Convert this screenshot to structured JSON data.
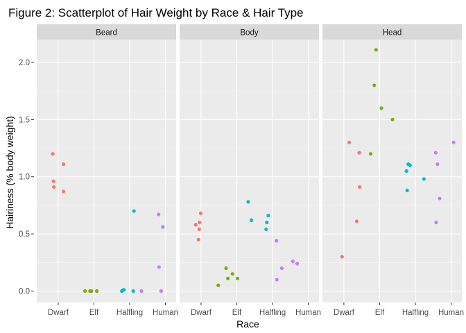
{
  "chart_data": {
    "type": "scatter",
    "title": "Figure 2: Scatterplot of Hair Weight by Race & Hair Type",
    "xlabel": "Race",
    "ylabel": "Hairiness (% body weight)",
    "facets": [
      "Beard",
      "Body",
      "Head"
    ],
    "categories": [
      "Dwarf",
      "Elf",
      "Halfling",
      "Human"
    ],
    "ylim": [
      -0.1,
      2.2
    ],
    "yticks": [
      0.0,
      0.5,
      1.0,
      1.5,
      2.0
    ],
    "ytick_labels": [
      "0.0",
      "0.5",
      "1.0",
      "1.5",
      "2.0"
    ],
    "grid": true,
    "legend": "none",
    "colors": {
      "Dwarf": "#f8766d",
      "Elf": "#7cae00",
      "Halfling": "#00bfc4",
      "Human": "#c77cff"
    },
    "panel_background": "#ebebeb",
    "strip_background": "#d9d9d9",
    "points": [
      {
        "facet": "Beard",
        "race": "Dwarf",
        "x": 0.85,
        "y": 1.2
      },
      {
        "facet": "Beard",
        "race": "Dwarf",
        "x": 0.87,
        "y": 0.96
      },
      {
        "facet": "Beard",
        "race": "Dwarf",
        "x": 0.88,
        "y": 0.91
      },
      {
        "facet": "Beard",
        "race": "Dwarf",
        "x": 1.15,
        "y": 1.11
      },
      {
        "facet": "Beard",
        "race": "Dwarf",
        "x": 1.15,
        "y": 0.87
      },
      {
        "facet": "Beard",
        "race": "Elf",
        "x": 1.75,
        "y": 0.0
      },
      {
        "facet": "Beard",
        "race": "Elf",
        "x": 1.89,
        "y": 0.0
      },
      {
        "facet": "Beard",
        "race": "Elf",
        "x": 1.91,
        "y": 0.0
      },
      {
        "facet": "Beard",
        "race": "Elf",
        "x": 1.93,
        "y": 0.0
      },
      {
        "facet": "Beard",
        "race": "Elf",
        "x": 2.08,
        "y": 0.0
      },
      {
        "facet": "Beard",
        "race": "Halfling",
        "x": 2.78,
        "y": 0.0
      },
      {
        "facet": "Beard",
        "race": "Halfling",
        "x": 2.82,
        "y": 0.01
      },
      {
        "facet": "Beard",
        "race": "Halfling",
        "x": 2.84,
        "y": 0.01
      },
      {
        "facet": "Beard",
        "race": "Halfling",
        "x": 3.1,
        "y": 0.0
      },
      {
        "facet": "Beard",
        "race": "Halfling",
        "x": 3.12,
        "y": 0.7
      },
      {
        "facet": "Beard",
        "race": "Human",
        "x": 3.33,
        "y": 0.0
      },
      {
        "facet": "Beard",
        "race": "Human",
        "x": 3.81,
        "y": 0.67
      },
      {
        "facet": "Beard",
        "race": "Human",
        "x": 3.82,
        "y": 0.21
      },
      {
        "facet": "Beard",
        "race": "Human",
        "x": 3.88,
        "y": 0.0
      },
      {
        "facet": "Beard",
        "race": "Human",
        "x": 3.93,
        "y": 0.56
      },
      {
        "facet": "Body",
        "race": "Dwarf",
        "x": 0.85,
        "y": 0.58
      },
      {
        "facet": "Body",
        "race": "Dwarf",
        "x": 0.93,
        "y": 0.45
      },
      {
        "facet": "Body",
        "race": "Dwarf",
        "x": 0.95,
        "y": 0.54
      },
      {
        "facet": "Body",
        "race": "Dwarf",
        "x": 0.96,
        "y": 0.6
      },
      {
        "facet": "Body",
        "race": "Dwarf",
        "x": 0.99,
        "y": 0.68
      },
      {
        "facet": "Body",
        "race": "Elf",
        "x": 1.48,
        "y": 0.05
      },
      {
        "facet": "Body",
        "race": "Elf",
        "x": 1.7,
        "y": 0.2
      },
      {
        "facet": "Body",
        "race": "Elf",
        "x": 1.75,
        "y": 0.11
      },
      {
        "facet": "Body",
        "race": "Elf",
        "x": 1.88,
        "y": 0.15
      },
      {
        "facet": "Body",
        "race": "Elf",
        "x": 2.02,
        "y": 0.11
      },
      {
        "facet": "Body",
        "race": "Halfling",
        "x": 2.32,
        "y": 0.78
      },
      {
        "facet": "Body",
        "race": "Halfling",
        "x": 2.41,
        "y": 0.62
      },
      {
        "facet": "Body",
        "race": "Halfling",
        "x": 2.82,
        "y": 0.54
      },
      {
        "facet": "Body",
        "race": "Halfling",
        "x": 2.84,
        "y": 0.6
      },
      {
        "facet": "Body",
        "race": "Halfling",
        "x": 2.88,
        "y": 0.66
      },
      {
        "facet": "Body",
        "race": "Human",
        "x": 3.11,
        "y": 0.44
      },
      {
        "facet": "Body",
        "race": "Human",
        "x": 3.12,
        "y": 0.1
      },
      {
        "facet": "Body",
        "race": "Human",
        "x": 3.26,
        "y": 0.2
      },
      {
        "facet": "Body",
        "race": "Human",
        "x": 3.57,
        "y": 0.26
      },
      {
        "facet": "Body",
        "race": "Human",
        "x": 3.69,
        "y": 0.24
      },
      {
        "facet": "Head",
        "race": "Dwarf",
        "x": 0.95,
        "y": 0.3
      },
      {
        "facet": "Head",
        "race": "Dwarf",
        "x": 1.15,
        "y": 1.3
      },
      {
        "facet": "Head",
        "race": "Dwarf",
        "x": 1.36,
        "y": 0.61
      },
      {
        "facet": "Head",
        "race": "Dwarf",
        "x": 1.43,
        "y": 1.21
      },
      {
        "facet": "Head",
        "race": "Dwarf",
        "x": 1.44,
        "y": 0.91
      },
      {
        "facet": "Head",
        "race": "Elf",
        "x": 1.75,
        "y": 1.2
      },
      {
        "facet": "Head",
        "race": "Elf",
        "x": 1.85,
        "y": 1.8
      },
      {
        "facet": "Head",
        "race": "Elf",
        "x": 1.9,
        "y": 2.11
      },
      {
        "facet": "Head",
        "race": "Elf",
        "x": 2.05,
        "y": 1.6
      },
      {
        "facet": "Head",
        "race": "Elf",
        "x": 2.36,
        "y": 1.5
      },
      {
        "facet": "Head",
        "race": "Halfling",
        "x": 2.75,
        "y": 1.05
      },
      {
        "facet": "Head",
        "race": "Halfling",
        "x": 2.77,
        "y": 0.88
      },
      {
        "facet": "Head",
        "race": "Halfling",
        "x": 2.8,
        "y": 1.11
      },
      {
        "facet": "Head",
        "race": "Halfling",
        "x": 2.85,
        "y": 1.1
      },
      {
        "facet": "Head",
        "race": "Halfling",
        "x": 3.24,
        "y": 0.98
      },
      {
        "facet": "Head",
        "race": "Human",
        "x": 3.57,
        "y": 1.21
      },
      {
        "facet": "Head",
        "race": "Human",
        "x": 3.58,
        "y": 0.6
      },
      {
        "facet": "Head",
        "race": "Human",
        "x": 3.62,
        "y": 1.11
      },
      {
        "facet": "Head",
        "race": "Human",
        "x": 3.68,
        "y": 0.81
      },
      {
        "facet": "Head",
        "race": "Human",
        "x": 4.07,
        "y": 1.3
      }
    ]
  }
}
